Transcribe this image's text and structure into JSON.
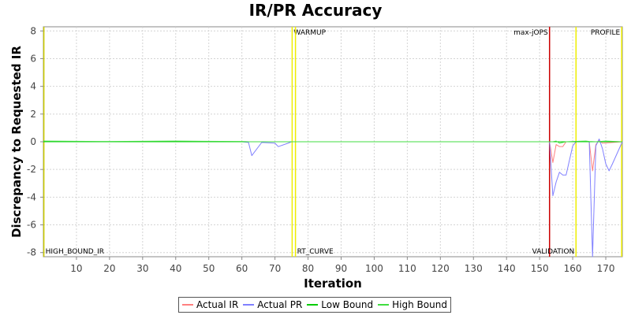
{
  "chart_data": {
    "type": "line",
    "title": "IR/PR Accuracy",
    "xlabel": "Iteration",
    "ylabel": "Discrepancy to Requested IR",
    "xlim": [
      0,
      175
    ],
    "ylim": [
      -8.3,
      8.3
    ],
    "x_ticks": [
      10,
      20,
      30,
      40,
      50,
      60,
      70,
      80,
      90,
      100,
      110,
      120,
      130,
      140,
      150,
      160,
      170
    ],
    "y_ticks": [
      -8,
      -6,
      -4,
      -2,
      0,
      2,
      4,
      6,
      8
    ],
    "grid": true,
    "legend_position": "bottom",
    "series": [
      {
        "name": "Actual IR",
        "color": "#ff8080",
        "points": [
          [
            0,
            0
          ],
          [
            62,
            0
          ],
          [
            75,
            0
          ],
          [
            100,
            0
          ],
          [
            140,
            0
          ],
          [
            153,
            0
          ],
          [
            154,
            -1.5
          ],
          [
            155,
            -0.2
          ],
          [
            156,
            -0.35
          ],
          [
            157,
            -0.35
          ],
          [
            158,
            0
          ],
          [
            165,
            0
          ],
          [
            166,
            -2.1
          ],
          [
            167,
            -0.2
          ],
          [
            168,
            0.1
          ],
          [
            169,
            -0.1
          ],
          [
            175,
            0
          ]
        ]
      },
      {
        "name": "Actual PR",
        "color": "#8080ff",
        "points": [
          [
            0,
            0
          ],
          [
            60,
            0
          ],
          [
            62,
            -0.05
          ],
          [
            63,
            -1.0
          ],
          [
            66,
            -0.05
          ],
          [
            70,
            -0.1
          ],
          [
            71,
            -0.35
          ],
          [
            74,
            -0.1
          ],
          [
            75,
            0
          ],
          [
            153,
            0
          ],
          [
            154,
            -3.9
          ],
          [
            155,
            -2.9
          ],
          [
            156,
            -2.2
          ],
          [
            157,
            -2.4
          ],
          [
            158,
            -2.4
          ],
          [
            160,
            -0.3
          ],
          [
            161,
            0
          ],
          [
            165,
            0
          ],
          [
            166,
            -8.3
          ],
          [
            167,
            -0.3
          ],
          [
            168,
            0.2
          ],
          [
            169,
            -0.5
          ],
          [
            170,
            -1.6
          ],
          [
            171,
            -2.1
          ],
          [
            172,
            -1.6
          ],
          [
            175,
            0
          ]
        ]
      },
      {
        "name": "Low Bound",
        "color": "#00cc00",
        "points": [
          [
            0,
            0
          ],
          [
            175,
            0
          ]
        ]
      },
      {
        "name": "High Bound",
        "color": "#40dd40",
        "points": [
          [
            0,
            0.05
          ],
          [
            20,
            0.02
          ],
          [
            40,
            0.05
          ],
          [
            60,
            0.02
          ],
          [
            62,
            0
          ],
          [
            75,
            0
          ],
          [
            153,
            0
          ],
          [
            154,
            0
          ],
          [
            155,
            0.05
          ],
          [
            156,
            -0.1
          ],
          [
            158,
            0
          ],
          [
            160,
            0.02
          ],
          [
            164,
            0.05
          ],
          [
            165,
            0.02
          ],
          [
            167,
            0
          ],
          [
            170,
            0.05
          ],
          [
            175,
            0
          ]
        ]
      }
    ],
    "markers": [
      {
        "label": "HIGH_BOUND_IR",
        "x": 0.15,
        "color": "#cccc00",
        "label_position": "bottom"
      },
      {
        "label": "WARMUP",
        "x": 75.2,
        "color": "#eeee00",
        "label_position": "top"
      },
      {
        "label": "RT_CURVE",
        "x": 76.2,
        "color": "#eeee00",
        "label_position": "bottom"
      },
      {
        "label": "max-jOPS",
        "x": 153.0,
        "color": "#cc0000",
        "label_position": "top-left"
      },
      {
        "label": "VALIDATION",
        "x": 161.0,
        "color": "#eeee00",
        "label_position": "bottom-left"
      },
      {
        "label": "PROFILE",
        "x": 174.8,
        "color": "#eeee00",
        "label_position": "top-left"
      }
    ]
  }
}
